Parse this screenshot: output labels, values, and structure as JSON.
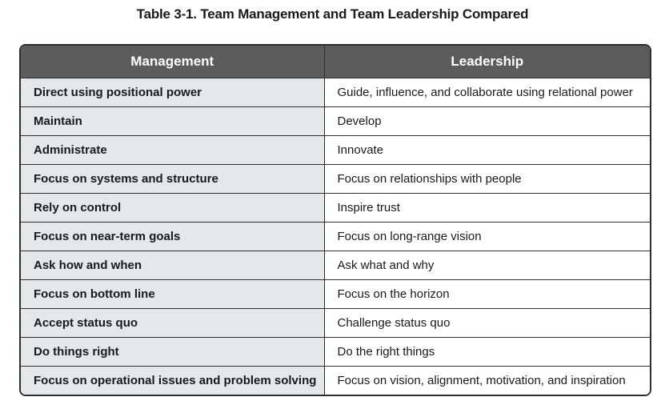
{
  "title": "Table 3-1. Team Management and Team Leadership Compared",
  "table": {
    "headers": [
      "Management",
      "Leadership"
    ],
    "rows": [
      [
        "Direct using positional power",
        "Guide, influence, and collaborate using relational power"
      ],
      [
        "Maintain",
        "Develop"
      ],
      [
        "Administrate",
        "Innovate"
      ],
      [
        "Focus on systems and structure",
        "Focus on relationships with people"
      ],
      [
        "Rely on control",
        "Inspire trust"
      ],
      [
        "Focus on near-term goals",
        "Focus on long-range vision"
      ],
      [
        "Ask how and when",
        "Ask what and why"
      ],
      [
        "Focus on bottom line",
        "Focus on the horizon"
      ],
      [
        "Accept status quo",
        "Challenge status quo"
      ],
      [
        "Do things right",
        "Do the right things"
      ],
      [
        "Focus on operational issues and problem solving",
        "Focus on vision, alignment, motivation, and inspiration"
      ]
    ]
  },
  "colors": {
    "header_bg": "#5c5c5c",
    "management_column_bg": "#e6e7e8",
    "leadership_column_bg": "#ffffff",
    "border": "#2e2e2e"
  }
}
